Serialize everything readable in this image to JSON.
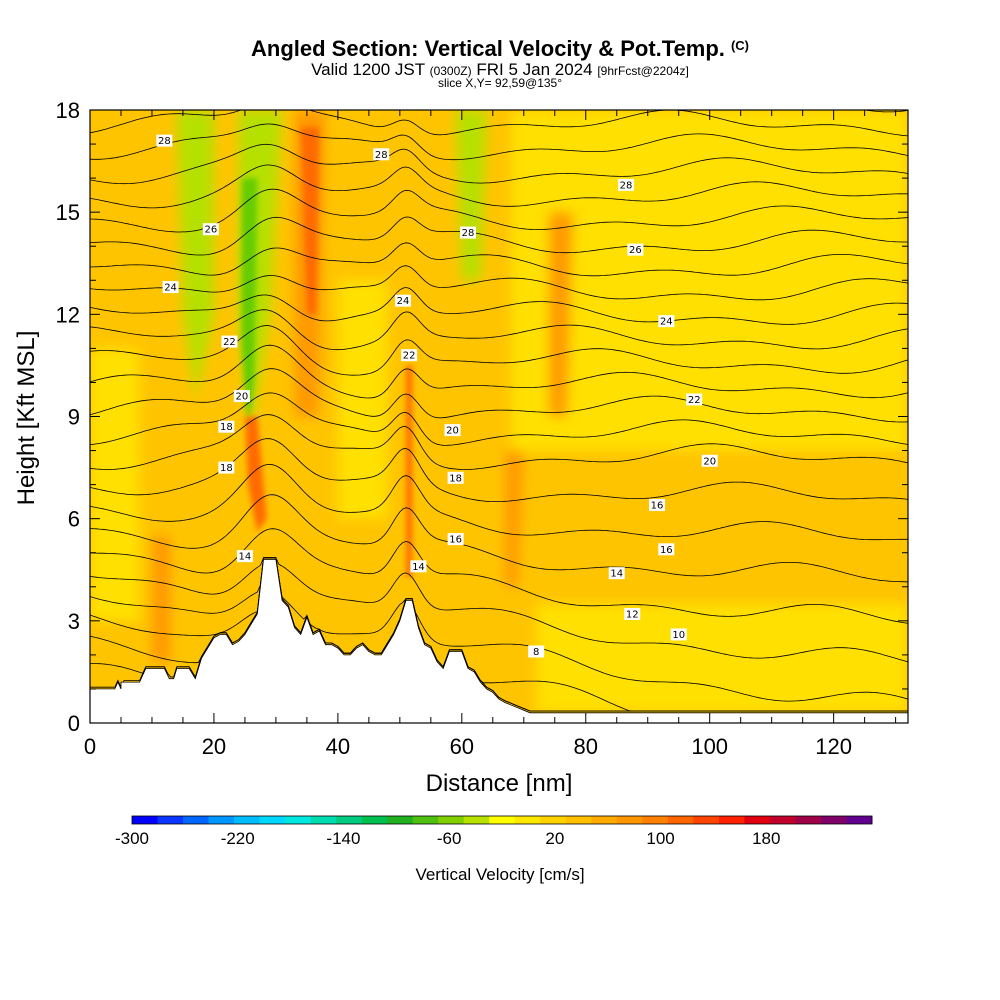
{
  "title": {
    "main": "Angled Section: Vertical Velocity & Pot.Temp.",
    "copyright": "(C)",
    "valid_main": "Valid 1200 JST",
    "valid_utc": "(0300Z)",
    "valid_date": "FRI 5 Jan 2024",
    "valid_fcst": "[9hrFcst@2204z]",
    "slice": "slice X,Y= 92,59@135°"
  },
  "colors": {
    "terrain": "#ffffff",
    "contour": "#000000",
    "bg_light": "#ffe000",
    "bg_mid": "#ffc400",
    "bg_orange": "#ff9a00",
    "bg_deep": "#ff6a00",
    "bg_green": "#b6e000",
    "bg_green_deep": "#66cc00"
  },
  "chart_data": {
    "type": "heatmap",
    "xlabel": "Distance [nm]",
    "ylabel": "Height [Kft MSL]",
    "xlim": [
      0,
      132
    ],
    "ylim": [
      0,
      18
    ],
    "xticks": [
      0,
      20,
      40,
      60,
      80,
      100,
      120
    ],
    "yticks": [
      0,
      3,
      6,
      9,
      12,
      15,
      18
    ],
    "terrain": [
      [
        0,
        1.0
      ],
      [
        4,
        1.0
      ],
      [
        4.5,
        1.2
      ],
      [
        5,
        1.0
      ],
      [
        5,
        1.0
      ],
      [
        5,
        1.2
      ],
      [
        6,
        1.2
      ],
      [
        8,
        1.2
      ],
      [
        9,
        1.6
      ],
      [
        11,
        1.6
      ],
      [
        12,
        1.6
      ],
      [
        12.8,
        1.3
      ],
      [
        13.5,
        1.3
      ],
      [
        14,
        1.6
      ],
      [
        16,
        1.6
      ],
      [
        17,
        1.3
      ],
      [
        17.5,
        1.6
      ],
      [
        18,
        1.9
      ],
      [
        19,
        2.2
      ],
      [
        20,
        2.5
      ],
      [
        21,
        2.6
      ],
      [
        22,
        2.6
      ],
      [
        23,
        2.3
      ],
      [
        24,
        2.4
      ],
      [
        25,
        2.6
      ],
      [
        26,
        2.9
      ],
      [
        27,
        3.2
      ],
      [
        28,
        4.8
      ],
      [
        30,
        4.8
      ],
      [
        31,
        3.6
      ],
      [
        32,
        3.4
      ],
      [
        33,
        2.8
      ],
      [
        34,
        2.6
      ],
      [
        35,
        3.1
      ],
      [
        36,
        2.6
      ],
      [
        37,
        2.7
      ],
      [
        38,
        2.3
      ],
      [
        39,
        2.3
      ],
      [
        40,
        2.2
      ],
      [
        41,
        2.0
      ],
      [
        42,
        2.0
      ],
      [
        43,
        2.2
      ],
      [
        44,
        2.3
      ],
      [
        45,
        2.1
      ],
      [
        46,
        2.0
      ],
      [
        47,
        2.0
      ],
      [
        48,
        2.3
      ],
      [
        49,
        2.6
      ],
      [
        50,
        3.0
      ],
      [
        51,
        3.6
      ],
      [
        52,
        3.6
      ],
      [
        53,
        2.8
      ],
      [
        54,
        2.3
      ],
      [
        55,
        2.2
      ],
      [
        56,
        1.8
      ],
      [
        57,
        1.6
      ],
      [
        58,
        2.1
      ],
      [
        60,
        2.1
      ],
      [
        61,
        1.6
      ],
      [
        62,
        1.5
      ],
      [
        63,
        1.2
      ],
      [
        64,
        1.0
      ],
      [
        65,
        0.9
      ],
      [
        66,
        0.7
      ],
      [
        67,
        0.6
      ],
      [
        71,
        0.3
      ],
      [
        132,
        0.3
      ]
    ],
    "isentropes": [
      8,
      10,
      12,
      14,
      16,
      18,
      20,
      22,
      24,
      26,
      28
    ],
    "contour_labels": [
      {
        "text": "28",
        "x": 12,
        "y": 17.1
      },
      {
        "text": "28",
        "x": 47,
        "y": 16.7
      },
      {
        "text": "28",
        "x": 86.5,
        "y": 15.8
      },
      {
        "text": "26",
        "x": 19.5,
        "y": 14.5
      },
      {
        "text": "28",
        "x": 61,
        "y": 14.4
      },
      {
        "text": "26",
        "x": 88,
        "y": 13.9
      },
      {
        "text": "24",
        "x": 13,
        "y": 12.8
      },
      {
        "text": "24",
        "x": 50.5,
        "y": 12.4
      },
      {
        "text": "24",
        "x": 93,
        "y": 11.8
      },
      {
        "text": "22",
        "x": 22.5,
        "y": 11.2
      },
      {
        "text": "22",
        "x": 51.5,
        "y": 10.8
      },
      {
        "text": "20",
        "x": 24.5,
        "y": 9.6
      },
      {
        "text": "22",
        "x": 97.5,
        "y": 9.5
      },
      {
        "text": "18",
        "x": 22,
        "y": 8.7
      },
      {
        "text": "20",
        "x": 58.5,
        "y": 8.6
      },
      {
        "text": "18",
        "x": 22,
        "y": 7.5
      },
      {
        "text": "20",
        "x": 100,
        "y": 7.7
      },
      {
        "text": "18",
        "x": 59,
        "y": 7.2
      },
      {
        "text": "16",
        "x": 91.5,
        "y": 6.4
      },
      {
        "text": "16",
        "x": 59,
        "y": 5.4
      },
      {
        "text": "16",
        "x": 93,
        "y": 5.1
      },
      {
        "text": "14",
        "x": 25,
        "y": 4.9
      },
      {
        "text": "14",
        "x": 53,
        "y": 4.6
      },
      {
        "text": "14",
        "x": 85,
        "y": 4.4
      },
      {
        "text": "12",
        "x": 87.5,
        "y": 3.2
      },
      {
        "text": "10",
        "x": 95,
        "y": 2.6
      },
      {
        "text": "8",
        "x": 72,
        "y": 2.1
      }
    ],
    "colorbar": {
      "label": "Vertical Velocity [cm/s]",
      "range": [
        -300,
        260
      ],
      "tick_labels": [
        "-300",
        "-220",
        "-140",
        "-60",
        "20",
        "100",
        "180"
      ],
      "tick_values": [
        -300,
        -220,
        -140,
        -60,
        20,
        100,
        180
      ],
      "colors": [
        "#0000ff",
        "#0a34ff",
        "#0066ff",
        "#0096ff",
        "#00bcff",
        "#00d8ff",
        "#00e8e0",
        "#00dcb0",
        "#00cc80",
        "#00c050",
        "#20b020",
        "#50c010",
        "#80d000",
        "#b6e000",
        "#ffff00",
        "#ffe800",
        "#ffd200",
        "#ffc000",
        "#ffaa00",
        "#ff9600",
        "#ff8000",
        "#ff6400",
        "#ff4400",
        "#ff2000",
        "#e00010",
        "#c0002a",
        "#a00048",
        "#80006a",
        "#600090"
      ]
    }
  }
}
